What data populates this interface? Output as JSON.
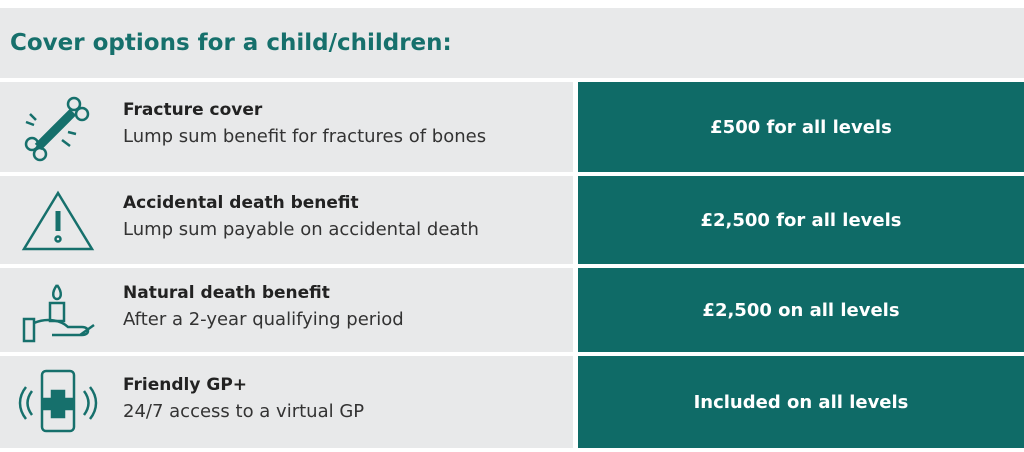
{
  "header": {
    "title": "Cover options for a child/children:"
  },
  "rows": [
    {
      "title": "Fracture cover",
      "description": "Lump sum benefit for fractures of bones",
      "value": "£500 for all levels"
    },
    {
      "title": "Accidental death benefit",
      "description": "Lump sum payable on accidental death",
      "value": "£2,500 for all levels"
    },
    {
      "title": "Natural death benefit",
      "description": "After a 2-year qualifying period",
      "value": "£2,500 on all levels"
    },
    {
      "title": "Friendly GP+",
      "description": "24/7 access to a virtual GP",
      "value": "Included on all levels"
    }
  ]
}
